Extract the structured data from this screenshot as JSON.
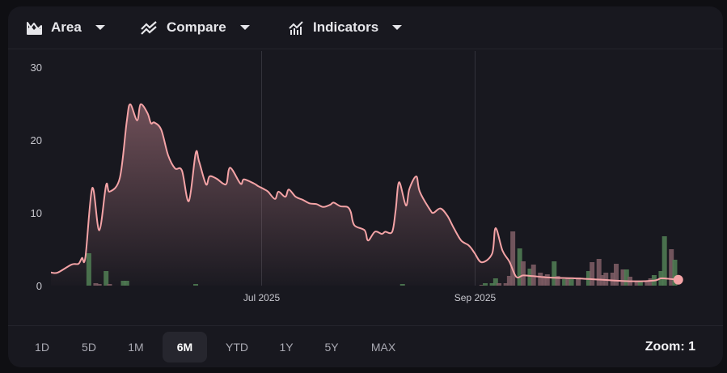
{
  "toolbar": {
    "chart_type": {
      "label": "Area",
      "icon": "area-chart-icon"
    },
    "compare": {
      "label": "Compare",
      "icon": "compare-icon"
    },
    "indicators": {
      "label": "Indicators",
      "icon": "indicators-icon"
    }
  },
  "ranges": [
    {
      "label": "1D",
      "active": false
    },
    {
      "label": "5D",
      "active": false
    },
    {
      "label": "1M",
      "active": false
    },
    {
      "label": "6M",
      "active": true
    },
    {
      "label": "YTD",
      "active": false
    },
    {
      "label": "1Y",
      "active": false
    },
    {
      "label": "5Y",
      "active": false
    },
    {
      "label": "MAX",
      "active": false
    }
  ],
  "zoom_label": "Zoom: 1",
  "colors": {
    "line": "#f4a3a6",
    "volume_up": "#4f7a52",
    "volume_down": "#7b5b63",
    "background": "#18181f"
  },
  "chart_data": {
    "type": "area",
    "ylim": [
      0,
      30
    ],
    "y_ticks": [
      "0",
      "10",
      "20",
      "30"
    ],
    "y_tick_values": [
      0,
      10,
      20,
      30
    ],
    "xlim": [
      "2025-05-01",
      "2025-10-31"
    ],
    "x_ticks": [
      {
        "label": "Jul 2025",
        "date": "2025-07-01"
      },
      {
        "label": "Sep 2025",
        "date": "2025-09-01"
      }
    ],
    "grid": "vertical at x ticks",
    "legend": "none",
    "series": [
      {
        "points": [
          [
            "2025-05-01",
            1.8
          ],
          [
            "2025-05-03",
            1.8
          ],
          [
            "2025-05-07",
            2.9
          ],
          [
            "2025-05-09",
            3.0
          ],
          [
            "2025-05-10",
            3.8
          ],
          [
            "2025-05-11",
            3.9
          ],
          [
            "2025-05-13",
            13.4
          ],
          [
            "2025-05-15",
            7.6
          ],
          [
            "2025-05-17",
            13.8
          ],
          [
            "2025-05-18",
            12.9
          ],
          [
            "2025-05-21",
            14.8
          ],
          [
            "2025-05-23",
            22.6
          ],
          [
            "2025-05-24",
            24.9
          ],
          [
            "2025-05-26",
            22.7
          ],
          [
            "2025-05-27",
            24.9
          ],
          [
            "2025-05-29",
            23.7
          ],
          [
            "2025-05-30",
            22.3
          ],
          [
            "2025-05-31",
            22.4
          ],
          [
            "2025-06-02",
            21.4
          ],
          [
            "2025-06-04",
            17.9
          ],
          [
            "2025-06-06",
            16.1
          ],
          [
            "2025-06-08",
            15.8
          ],
          [
            "2025-06-10",
            11.6
          ],
          [
            "2025-06-12",
            18.2
          ],
          [
            "2025-06-13",
            17.0
          ],
          [
            "2025-06-15",
            13.9
          ],
          [
            "2025-06-16",
            15.0
          ],
          [
            "2025-06-18",
            14.7
          ],
          [
            "2025-06-20",
            14.0
          ],
          [
            "2025-06-21",
            14.1
          ],
          [
            "2025-06-22",
            16.2
          ],
          [
            "2025-06-25",
            14.0
          ],
          [
            "2025-06-26",
            14.6
          ],
          [
            "2025-06-29",
            14.0
          ],
          [
            "2025-06-30",
            13.7
          ],
          [
            "2025-07-02",
            13.2
          ],
          [
            "2025-07-03",
            12.9
          ],
          [
            "2025-07-05",
            11.9
          ],
          [
            "2025-07-06",
            12.9
          ],
          [
            "2025-07-08",
            12.2
          ],
          [
            "2025-07-09",
            13.2
          ],
          [
            "2025-07-11",
            12.2
          ],
          [
            "2025-07-13",
            11.8
          ],
          [
            "2025-07-15",
            11.3
          ],
          [
            "2025-07-17",
            11.2
          ],
          [
            "2025-07-19",
            10.8
          ],
          [
            "2025-07-21",
            11.1
          ],
          [
            "2025-07-22",
            11.4
          ],
          [
            "2025-07-24",
            10.9
          ],
          [
            "2025-07-26",
            10.8
          ],
          [
            "2025-07-27",
            10.1
          ],
          [
            "2025-07-28",
            8.3
          ],
          [
            "2025-07-31",
            7.6
          ],
          [
            "2025-08-01",
            6.2
          ],
          [
            "2025-08-03",
            7.4
          ],
          [
            "2025-08-05",
            7.1
          ],
          [
            "2025-08-06",
            7.4
          ],
          [
            "2025-08-08",
            7.4
          ],
          [
            "2025-08-09",
            10.3
          ],
          [
            "2025-08-10",
            14.2
          ],
          [
            "2025-08-12",
            11.0
          ],
          [
            "2025-08-13",
            13.3
          ],
          [
            "2025-08-15",
            15.0
          ],
          [
            "2025-08-16",
            12.9
          ],
          [
            "2025-08-19",
            10.4
          ],
          [
            "2025-08-20",
            10.0
          ],
          [
            "2025-08-22",
            10.6
          ],
          [
            "2025-08-24",
            9.6
          ],
          [
            "2025-08-26",
            7.8
          ],
          [
            "2025-08-28",
            6.2
          ],
          [
            "2025-08-30",
            5.6
          ],
          [
            "2025-08-31",
            5.1
          ],
          [
            "2025-09-01",
            4.4
          ],
          [
            "2025-09-03",
            3.2
          ],
          [
            "2025-09-06",
            4.4
          ],
          [
            "2025-09-07",
            7.9
          ],
          [
            "2025-09-09",
            4.8
          ],
          [
            "2025-09-11",
            3.3
          ],
          [
            "2025-09-13",
            1.2
          ],
          [
            "2025-09-15",
            1.4
          ],
          [
            "2025-09-18",
            1.3
          ],
          [
            "2025-09-23",
            1.1
          ],
          [
            "2025-09-30",
            1.0
          ],
          [
            "2025-10-08",
            0.8
          ],
          [
            "2025-10-16",
            0.6
          ],
          [
            "2025-10-23",
            0.7
          ],
          [
            "2025-10-25",
            1.0
          ],
          [
            "2025-10-28",
            0.9
          ],
          [
            "2025-10-30",
            0.8
          ]
        ]
      }
    ],
    "volume_scale": "relative",
    "volume": [
      [
        "2025-05-12",
        40,
        "up"
      ],
      [
        "2025-05-14",
        3,
        "down"
      ],
      [
        "2025-05-15",
        2,
        "down"
      ],
      [
        "2025-05-17",
        18,
        "up"
      ],
      [
        "2025-05-18",
        2,
        "down"
      ],
      [
        "2025-05-22",
        6,
        "up"
      ],
      [
        "2025-05-23",
        6,
        "up"
      ],
      [
        "2025-06-12",
        2,
        "up"
      ],
      [
        "2025-08-11",
        2,
        "up"
      ],
      [
        "2025-09-03",
        1,
        "down"
      ],
      [
        "2025-09-04",
        3,
        "up"
      ],
      [
        "2025-09-06",
        3,
        "up"
      ],
      [
        "2025-09-07",
        9,
        "up"
      ],
      [
        "2025-09-08",
        3,
        "down"
      ],
      [
        "2025-09-10",
        3,
        "down"
      ],
      [
        "2025-09-11",
        12,
        "down"
      ],
      [
        "2025-09-12",
        67,
        "down"
      ],
      [
        "2025-09-14",
        46,
        "up"
      ],
      [
        "2025-09-15",
        30,
        "down"
      ],
      [
        "2025-09-17",
        21,
        "up"
      ],
      [
        "2025-09-18",
        26,
        "down"
      ],
      [
        "2025-09-20",
        16,
        "down"
      ],
      [
        "2025-09-21",
        12,
        "down"
      ],
      [
        "2025-09-22",
        14,
        "down"
      ],
      [
        "2025-09-24",
        30,
        "up"
      ],
      [
        "2025-09-25",
        12,
        "down"
      ],
      [
        "2025-09-27",
        8,
        "up"
      ],
      [
        "2025-09-28",
        10,
        "down"
      ],
      [
        "2025-09-29",
        8,
        "up"
      ],
      [
        "2025-10-01",
        10,
        "down"
      ],
      [
        "2025-10-04",
        18,
        "up"
      ],
      [
        "2025-10-05",
        29,
        "down"
      ],
      [
        "2025-10-07",
        33,
        "down"
      ],
      [
        "2025-10-08",
        13,
        "down"
      ],
      [
        "2025-10-09",
        16,
        "down"
      ],
      [
        "2025-10-11",
        16,
        "down"
      ],
      [
        "2025-10-12",
        27,
        "down"
      ],
      [
        "2025-10-14",
        20,
        "down"
      ],
      [
        "2025-10-15",
        20,
        "up"
      ],
      [
        "2025-10-16",
        11,
        "down"
      ],
      [
        "2025-10-18",
        5,
        "down"
      ],
      [
        "2025-10-19",
        5,
        "up"
      ],
      [
        "2025-10-21",
        5,
        "down"
      ],
      [
        "2025-10-22",
        9,
        "down"
      ],
      [
        "2025-10-23",
        13,
        "up"
      ],
      [
        "2025-10-25",
        18,
        "up"
      ],
      [
        "2025-10-26",
        61,
        "up"
      ],
      [
        "2025-10-28",
        45,
        "down"
      ],
      [
        "2025-10-29",
        32,
        "up"
      ]
    ]
  }
}
